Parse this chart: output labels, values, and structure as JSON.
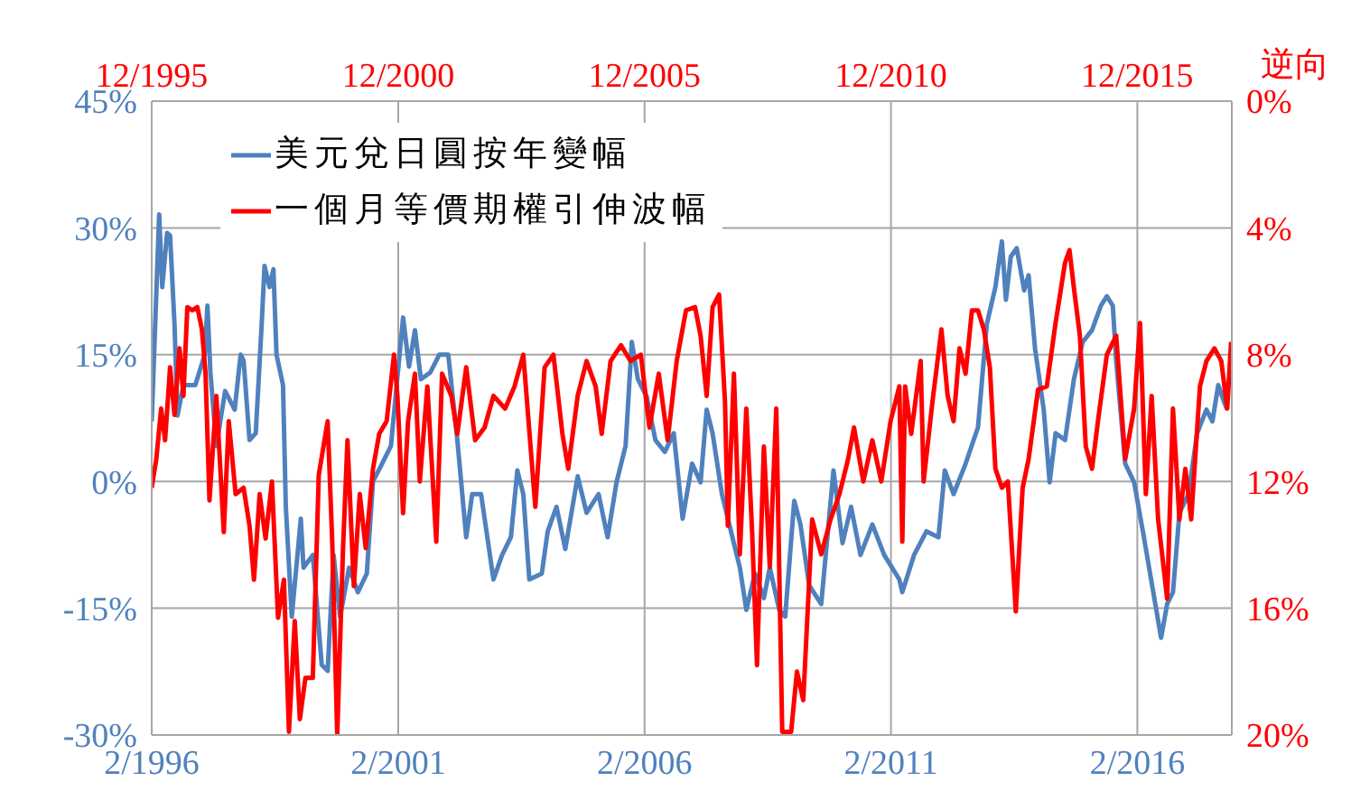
{
  "chart_data": {
    "type": "line",
    "y2label": "逆向",
    "xlim": [
      "1996-02",
      "2018-01"
    ],
    "xticks": [
      {
        "value": "1996-02",
        "label": "2/1996"
      },
      {
        "value": "2001-02",
        "label": "2/2001"
      },
      {
        "value": "2006-02",
        "label": "2/2006"
      },
      {
        "value": "2011-02",
        "label": "2/2011"
      },
      {
        "value": "2016-02",
        "label": "2/2016"
      }
    ],
    "x2lim": [
      "1995-12",
      "2017-11"
    ],
    "x2ticks": [
      {
        "value": "1995-12",
        "label": "12/1995"
      },
      {
        "value": "2000-12",
        "label": "12/2000"
      },
      {
        "value": "2005-12",
        "label": "12/2005"
      },
      {
        "value": "2010-12",
        "label": "12/2010"
      },
      {
        "value": "2015-12",
        "label": "12/2015"
      }
    ],
    "ylim": [
      -30,
      45
    ],
    "yticks": [
      {
        "value": -30,
        "label": "-30%"
      },
      {
        "value": -15,
        "label": "-15%"
      },
      {
        "value": 0,
        "label": "0%"
      },
      {
        "value": 15,
        "label": "15%"
      },
      {
        "value": 30,
        "label": "30%"
      },
      {
        "value": 45,
        "label": "45%"
      }
    ],
    "y2lim": [
      20,
      0
    ],
    "y2ticks": [
      {
        "value": 0,
        "label": "0%"
      },
      {
        "value": 4,
        "label": "4%"
      },
      {
        "value": 8,
        "label": "8%"
      },
      {
        "value": 12,
        "label": "12%"
      },
      {
        "value": 16,
        "label": "16%"
      },
      {
        "value": 20,
        "label": "20%"
      }
    ],
    "grid": true,
    "legend": "top left",
    "marker": "none",
    "line_style": "solid",
    "series": [
      {
        "name": "美元兌日圓按年變幅",
        "color": "#4f81bd",
        "x": [
          "1996-02-01",
          "1996-03-27",
          "1996-04-19",
          "1996-05-25",
          "1996-06-16",
          "1996-07-19",
          "1996-08-10",
          "1996-09-23",
          "1996-12-20",
          "1997-02-28",
          "1997-03-20",
          "1997-04-11",
          "1997-05-25",
          "1997-07-29",
          "1997-10-08",
          "1997-11-21",
          "1997-12-13",
          "1998-01-26",
          "1998-03-13",
          "1998-04-26",
          "1998-05-17",
          "1998-06-23",
          "1998-07-22",
          "1998-08-14",
          "1998-10-01",
          "1998-10-22",
          "1998-12-05",
          "1999-02-10",
          "1999-03-02",
          "1999-05-10",
          "1999-07-15",
          "1999-08-28",
          "1999-10-11",
          "1999-11-28",
          "2000-02-03",
          "2000-04-08",
          "2000-06-13",
          "2000-07-29",
          "2000-10-04",
          "2000-12-09",
          "2001-03-09",
          "2001-04-22",
          "2001-06-05",
          "2001-07-19",
          "2001-09-27",
          "2001-12-02",
          "2002-02-07",
          "2002-04-15",
          "2002-06-20",
          "2002-08-03",
          "2002-10-08",
          "2003-01-08",
          "2003-03-13",
          "2003-05-17",
          "2003-07-04",
          "2003-08-17",
          "2003-10-01",
          "2004-01-01",
          "2004-02-14",
          "2004-04-19",
          "2004-06-23",
          "2004-09-23",
          "2004-11-28",
          "2005-02-25",
          "2005-05-03",
          "2005-07-08",
          "2005-09-13",
          "2005-10-29",
          "2005-12-13",
          "2006-02-17",
          "2006-04-22",
          "2006-07-01",
          "2006-09-05",
          "2006-11-10",
          "2007-01-19",
          "2007-03-23",
          "2007-05-07",
          "2007-06-20",
          "2007-08-28",
          "2007-11-03",
          "2008-01-08",
          "2008-02-25",
          "2008-04-29",
          "2008-07-04",
          "2008-08-17",
          "2008-10-26",
          "2008-12-09",
          "2009-02-14",
          "2009-04-01",
          "2009-06-05",
          "2009-09-02",
          "2009-12-02",
          "2010-02-07",
          "2010-04-11",
          "2010-06-20",
          "2010-09-16",
          "2010-12-13",
          "2011-04-04",
          "2011-04-26",
          "2011-07-22",
          "2011-10-22",
          "2012-01-19",
          "2012-03-06",
          "2012-05-10",
          "2012-08-07",
          "2012-11-07",
          "2013-01-11",
          "2013-03-16",
          "2013-05-03",
          "2013-06-02",
          "2013-07-08",
          "2013-08-21",
          "2013-10-15",
          "2013-11-17",
          "2014-01-04",
          "2014-03-09",
          "2014-04-22",
          "2014-06-05",
          "2014-08-14",
          "2014-10-19",
          "2014-12-23",
          "2015-03-02",
          "2015-05-07",
          "2015-06-20",
          "2015-08-03",
          "2015-08-28",
          "2015-11-03",
          "2016-01-08",
          "2016-03-13",
          "2016-06-13",
          "2016-07-26",
          "2016-09-09",
          "2016-10-22",
          "2016-12-09",
          "2017-02-14",
          "2017-04-19",
          "2017-06-27",
          "2017-08-10",
          "2017-09-23",
          "2017-11-07",
          "2017-11-28"
        ],
        "values": [
          7.1,
          31.6,
          23.0,
          29.4,
          29.1,
          18.6,
          7.8,
          11.4,
          11.4,
          15.0,
          20.8,
          12.9,
          4.2,
          10.7,
          8.5,
          15.0,
          14.3,
          4.9,
          5.7,
          18.6,
          25.5,
          23.0,
          25.1,
          15.0,
          11.4,
          -3.0,
          -16.0,
          -4.4,
          -10.2,
          -8.7,
          -21.7,
          -22.4,
          -8.7,
          -16.0,
          -10.2,
          -13.1,
          -10.9,
          0.0,
          2.1,
          4.2,
          19.4,
          13.6,
          17.9,
          12.1,
          12.9,
          15.0,
          15.0,
          4.9,
          -6.6,
          -1.5,
          -1.5,
          -11.6,
          -8.7,
          -6.6,
          1.3,
          -1.5,
          -11.6,
          -10.9,
          -5.9,
          -3.0,
          -8.0,
          0.6,
          -3.7,
          -1.5,
          -6.6,
          -0.1,
          4.2,
          16.5,
          12.1,
          10.0,
          4.9,
          3.5,
          5.7,
          -4.4,
          2.1,
          -0.1,
          8.5,
          5.7,
          -1.5,
          -5.9,
          -10.2,
          -15.2,
          -10.9,
          -13.8,
          -10.2,
          -15.2,
          -16.0,
          -2.3,
          -5.1,
          -12.3,
          -14.5,
          1.3,
          -7.3,
          -3.0,
          -8.7,
          -5.1,
          -8.7,
          -11.6,
          -13.1,
          -8.7,
          -5.9,
          -6.6,
          1.3,
          -1.5,
          2.1,
          6.4,
          18.6,
          23.0,
          28.4,
          21.5,
          26.6,
          27.6,
          22.6,
          24.4,
          15.7,
          8.5,
          -0.1,
          5.7,
          4.9,
          12.1,
          16.5,
          17.9,
          20.8,
          21.9,
          20.8,
          14.3,
          2.1,
          -0.1,
          -5.9,
          -14.5,
          -18.5,
          -14.5,
          -13.1,
          -3.7,
          -1.5,
          5.7,
          8.5,
          7.1,
          11.4,
          9.3,
          8.5
        ]
      },
      {
        "name": "一個月等價期權引伸波幅",
        "color": "#ff0000",
        "axis": "y2",
        "x": [
          "1996-02-01",
          "1996-03-06",
          "1996-04-11",
          "1996-05-10",
          "1996-06-16",
          "1996-07-19",
          "1996-08-25",
          "1996-09-23",
          "1996-10-22",
          "1996-11-28",
          "1997-01-04",
          "1997-02-07",
          "1997-03-06",
          "1997-04-04",
          "1997-05-25",
          "1997-07-19",
          "1997-08-25",
          "1997-10-15",
          "1997-12-13",
          "1998-01-26",
          "1998-02-28",
          "1998-04-11",
          "1998-05-25",
          "1998-07-11",
          "1998-08-25",
          "1998-10-08",
          "1998-11-14",
          "1998-12-27",
          "1999-02-03",
          "1999-03-16",
          "1999-05-10",
          "1999-06-23",
          "1999-08-28",
          "1999-10-01",
          "1999-11-07",
          "1999-12-20",
          "2000-01-22",
          "2000-03-09",
          "2000-04-22",
          "2000-06-05",
          "2000-07-29",
          "2000-09-13",
          "2000-11-07",
          "2001-01-01",
          "2001-01-26",
          "2001-03-09",
          "2001-04-15",
          "2001-06-05",
          "2001-07-11",
          "2001-09-05",
          "2001-11-10",
          "2001-12-23",
          "2002-03-02",
          "2002-04-15",
          "2002-06-20",
          "2002-08-25",
          "2002-11-03",
          "2003-01-08",
          "2003-04-04",
          "2003-06-13",
          "2003-08-17",
          "2003-11-14",
          "2004-01-22",
          "2004-03-27",
          "2004-06-02",
          "2004-07-15",
          "2004-09-23",
          "2004-11-28",
          "2005-02-03",
          "2005-03-20",
          "2005-05-25",
          "2005-08-10",
          "2005-10-19",
          "2006-01-04",
          "2006-03-09",
          "2006-05-17",
          "2006-07-22",
          "2006-09-27",
          "2006-12-05",
          "2007-02-10",
          "2007-03-23",
          "2007-05-07",
          "2007-06-20",
          "2007-08-07",
          "2007-09-20",
          "2007-10-11",
          "2007-11-25",
          "2008-01-08",
          "2008-02-25",
          "2008-04-08",
          "2008-05-14",
          "2008-07-04",
          "2008-08-17",
          "2008-10-04",
          "2008-11-17",
          "2009-01-22",
          "2009-03-06",
          "2009-04-22",
          "2009-06-27",
          "2009-09-02",
          "2009-11-10",
          "2010-01-15",
          "2010-03-20",
          "2010-05-03",
          "2010-07-11",
          "2010-09-16",
          "2010-11-21",
          "2011-01-29",
          "2011-04-04",
          "2011-04-26",
          "2011-05-17",
          "2011-07-01",
          "2011-09-09",
          "2011-10-01",
          "2011-12-05",
          "2012-02-10",
          "2012-03-27",
          "2012-05-10",
          "2012-06-23",
          "2012-08-07",
          "2012-09-23",
          "2012-11-07",
          "2012-12-20",
          "2013-02-03",
          "2013-03-16",
          "2013-05-03",
          "2013-06-16",
          "2013-08-14",
          "2013-10-04",
          "2013-11-17",
          "2014-01-26",
          "2014-04-01",
          "2014-06-05",
          "2014-08-14",
          "2014-09-16",
          "2014-10-19",
          "2014-12-02",
          "2015-01-15",
          "2015-03-02",
          "2015-04-15",
          "2015-06-20",
          "2015-08-28",
          "2015-11-03",
          "2016-01-08",
          "2016-02-21",
          "2016-04-04",
          "2016-05-17",
          "2016-07-04",
          "2016-09-09",
          "2016-10-22",
          "2016-12-09",
          "2017-01-22",
          "2017-03-06",
          "2017-05-10",
          "2017-06-27",
          "2017-08-25",
          "2017-10-15",
          "2017-11-28",
          "2017-12-27"
        ],
        "values": [
          12.2,
          11.3,
          9.7,
          10.7,
          8.4,
          9.9,
          7.8,
          9.3,
          6.5,
          6.6,
          6.5,
          7.2,
          8.6,
          12.6,
          9.3,
          13.6,
          10.1,
          12.4,
          12.2,
          13.4,
          15.1,
          12.4,
          13.8,
          12.0,
          16.3,
          15.1,
          19.9,
          16.4,
          19.5,
          18.2,
          18.2,
          11.8,
          10.1,
          13.9,
          20.0,
          14.1,
          10.7,
          15.3,
          12.4,
          14.1,
          11.6,
          10.5,
          10.1,
          8.0,
          9.3,
          13.0,
          10.1,
          8.6,
          12.0,
          9.0,
          13.9,
          8.6,
          9.3,
          10.5,
          8.4,
          10.7,
          10.3,
          9.3,
          9.7,
          9.0,
          8.0,
          12.8,
          8.4,
          8.0,
          10.5,
          11.6,
          9.3,
          8.2,
          9.0,
          10.5,
          8.2,
          7.7,
          8.2,
          8.0,
          10.3,
          8.6,
          10.7,
          8.2,
          6.6,
          6.5,
          7.4,
          9.3,
          6.5,
          6.1,
          9.5,
          13.4,
          8.6,
          14.3,
          9.7,
          13.6,
          17.8,
          10.9,
          14.7,
          9.7,
          19.9,
          19.9,
          18.0,
          18.9,
          13.2,
          14.3,
          13.2,
          12.4,
          11.3,
          10.3,
          12.0,
          10.7,
          12.0,
          10.1,
          9.0,
          13.9,
          9.0,
          10.5,
          8.2,
          12.0,
          9.5,
          7.2,
          9.3,
          10.1,
          7.8,
          8.6,
          6.6,
          6.6,
          7.2,
          8.4,
          11.6,
          12.2,
          12.0,
          16.1,
          12.2,
          11.3,
          9.1,
          9.0,
          7.0,
          5.1,
          4.7,
          5.9,
          7.4,
          10.9,
          11.6,
          10.1,
          8.0,
          7.4,
          11.3,
          9.7,
          7.0,
          12.4,
          9.3,
          13.2,
          15.7,
          9.7,
          13.2,
          11.6,
          13.2,
          9.0,
          8.2,
          7.8,
          8.2,
          9.7,
          7.6
        ]
      }
    ]
  }
}
